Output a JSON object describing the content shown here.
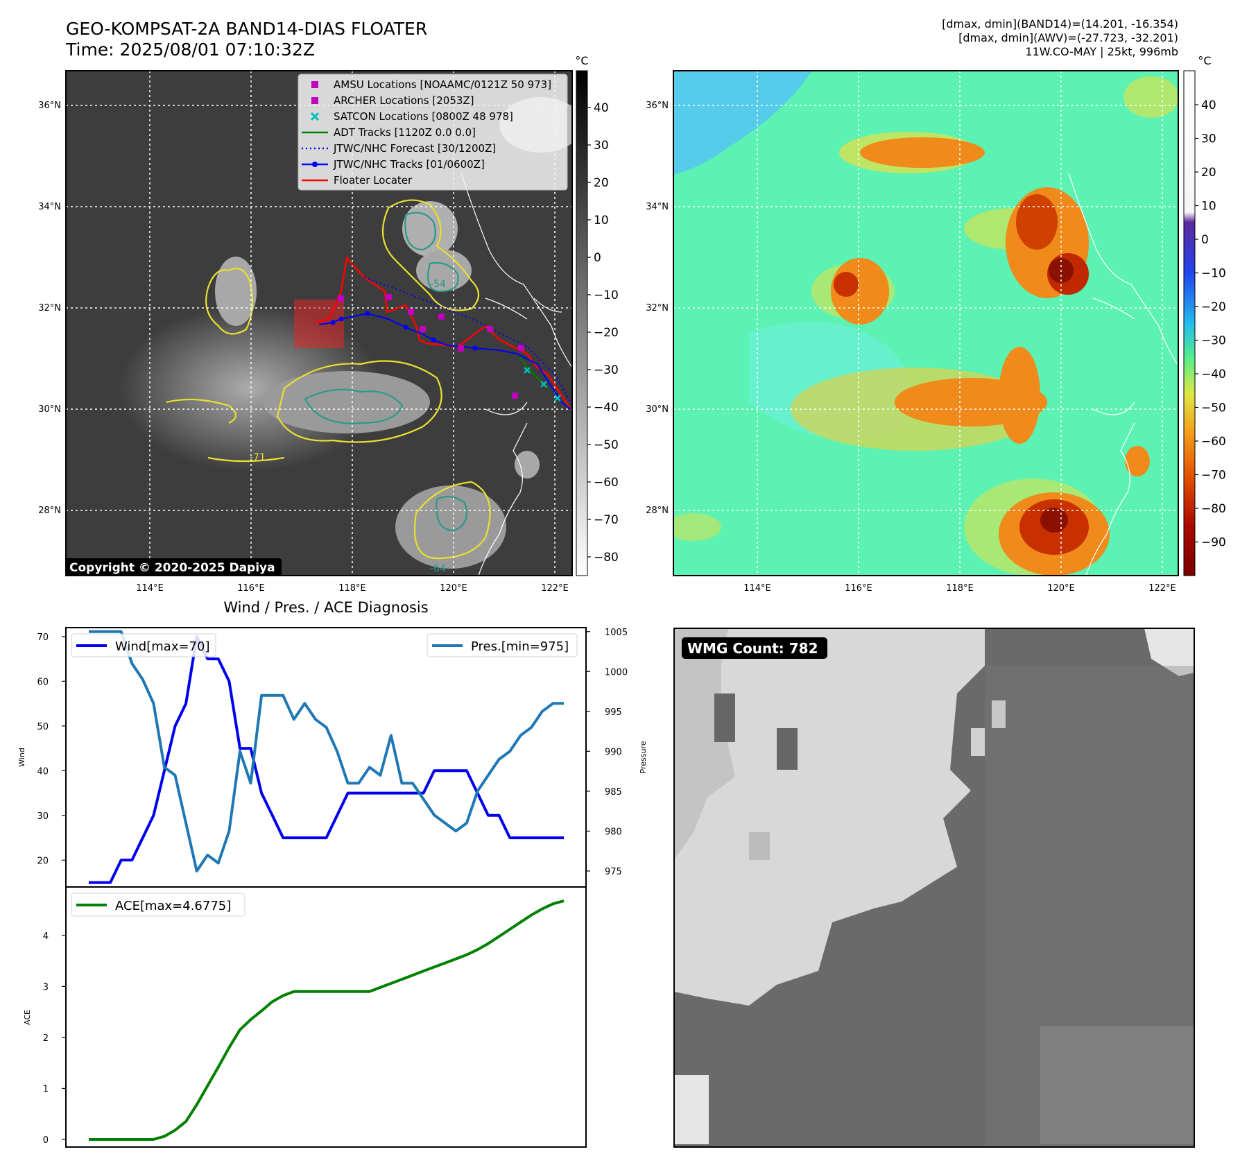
{
  "header": {
    "title_line1": "GEO-KOMPSAT-2A BAND14-DIAS FLOATER",
    "title_line2": "Time: 2025/08/01 07:10:32Z",
    "info_line1": "[dmax, dmin](BAND14)=(14.201, -16.354)",
    "info_line2": "[dmax, dmin](AWV)=(-27.723, -32.201)",
    "info_line3": "11W.CO-MAY | 25kt, 996mb"
  },
  "map": {
    "lat_labels": [
      "36°N",
      "34°N",
      "32°N",
      "30°N",
      "28°N"
    ],
    "lon_labels": [
      "114°E",
      "116°E",
      "118°E",
      "120°E",
      "122°E"
    ],
    "copyright": "Copyright © 2020-2025 Dapiya",
    "legend": [
      {
        "label": "AMSU Locations [NOAAMC/0121Z 50 973]",
        "color": "#c000c0",
        "marker": "square"
      },
      {
        "label": "ARCHER Locations [2053Z]",
        "color": "#c000c0",
        "marker": "square"
      },
      {
        "label": "SATCON Locations [0800Z 48 978]",
        "color": "#00bfbf",
        "marker": "x"
      },
      {
        "label": "ADT Tracks [1120Z 0.0 0.0]",
        "color": "#008000",
        "marker": "line"
      },
      {
        "label": "JTWC/NHC Forecast [30/1200Z]",
        "color": "#0000ff",
        "marker": "dotted"
      },
      {
        "label": "JTWC/NHC Tracks [01/0600Z]",
        "color": "#0000ff",
        "marker": "line-dot"
      },
      {
        "label": "Floater Locater",
        "color": "#ff0000",
        "marker": "line"
      }
    ],
    "contour_labels": [
      "-54",
      "-64",
      "-71"
    ]
  },
  "colorbar_left": {
    "unit": "°C",
    "ticks": [
      "40",
      "30",
      "20",
      "10",
      "0",
      "−10",
      "−20",
      "−30",
      "−40",
      "−50",
      "−60",
      "−70",
      "−80"
    ]
  },
  "colorbar_right": {
    "unit": "°C",
    "ticks": [
      "40",
      "30",
      "20",
      "10",
      "0",
      "−10",
      "−20",
      "−30",
      "−40",
      "−50",
      "−60",
      "−70",
      "−80",
      "−90"
    ]
  },
  "wmg": {
    "label": "WMG Count: 782"
  },
  "chart_data": [
    {
      "type": "line",
      "title": "Wind / Pres. / ACE Diagnosis",
      "ylabel": "Wind",
      "ylabel_right": "Pressure",
      "ylim": [
        14,
        72
      ],
      "ylim_right": [
        973,
        1005.5
      ],
      "yticks": [
        20,
        30,
        40,
        50,
        60,
        70
      ],
      "yticks_right": [
        975,
        980,
        985,
        990,
        995,
        1000,
        1005
      ],
      "series": [
        {
          "name": "Wind[max=70]",
          "axis": "left",
          "color": "#0000ee",
          "values": [
            15,
            15,
            15,
            20,
            20,
            25,
            30,
            40,
            50,
            55,
            70,
            65,
            65,
            60,
            45,
            45,
            35,
            30,
            25,
            25,
            25,
            25,
            25,
            30,
            35,
            35,
            35,
            35,
            35,
            35,
            35,
            35,
            40,
            40,
            40,
            40,
            35,
            30,
            30,
            25,
            25,
            25,
            25,
            25,
            25
          ]
        },
        {
          "name": "Pres.[min=975]",
          "axis": "right",
          "color": "#1f77b4",
          "values": [
            1005,
            1005,
            1005,
            1005,
            1001,
            999,
            996,
            988,
            987,
            981,
            975,
            977,
            976,
            980,
            990,
            986,
            997,
            997,
            997,
            994,
            996,
            994,
            993,
            990,
            986,
            986,
            988,
            987,
            992,
            986,
            986,
            984,
            982,
            981,
            980,
            981,
            985,
            987,
            989,
            990,
            992,
            993,
            995,
            996,
            996
          ]
        }
      ]
    },
    {
      "type": "line",
      "ylabel": "ACE",
      "ylim": [
        -0.15,
        4.95
      ],
      "yticks": [
        0,
        1,
        2,
        3,
        4
      ],
      "series": [
        {
          "name": "ACE[max=4.6775]",
          "color": "#008000",
          "values": [
            0,
            0,
            0,
            0,
            0,
            0,
            0,
            0.06,
            0.18,
            0.35,
            0.68,
            1.05,
            1.42,
            1.8,
            2.15,
            2.35,
            2.52,
            2.7,
            2.82,
            2.9,
            2.9,
            2.9,
            2.9,
            2.9,
            2.9,
            2.9,
            2.9,
            2.98,
            3.06,
            3.14,
            3.22,
            3.3,
            3.38,
            3.46,
            3.54,
            3.62,
            3.72,
            3.84,
            3.98,
            4.12,
            4.26,
            4.4,
            4.52,
            4.62,
            4.6775
          ]
        }
      ]
    }
  ]
}
